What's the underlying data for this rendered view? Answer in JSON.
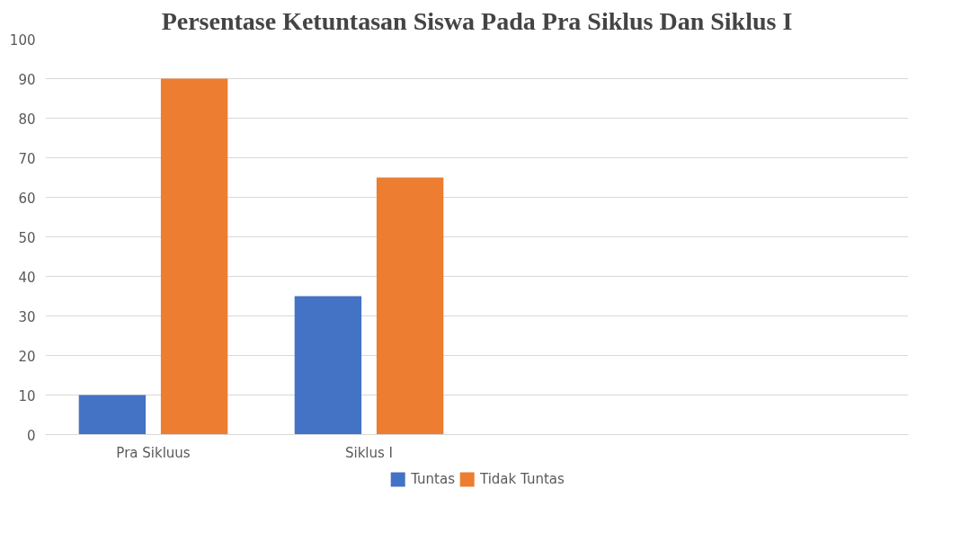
{
  "chart_data": {
    "type": "bar",
    "title": "Persentase Ketuntasan Siswa Pada Pra Siklus Dan Siklus I",
    "categories": [
      "Pra Sikluus",
      "Siklus I",
      null,
      null
    ],
    "series": [
      {
        "name": "Tuntas",
        "color": "#4472c4",
        "values": [
          10,
          35,
          null,
          null
        ]
      },
      {
        "name": "Tidak Tuntas",
        "color": "#ed7d31",
        "values": [
          90,
          65,
          null,
          null
        ]
      }
    ],
    "ylim": [
      0,
      100
    ],
    "yticks": [
      0,
      10,
      20,
      30,
      40,
      50,
      60,
      70,
      80,
      90,
      100
    ],
    "grid": "y",
    "legend": "bottom"
  }
}
